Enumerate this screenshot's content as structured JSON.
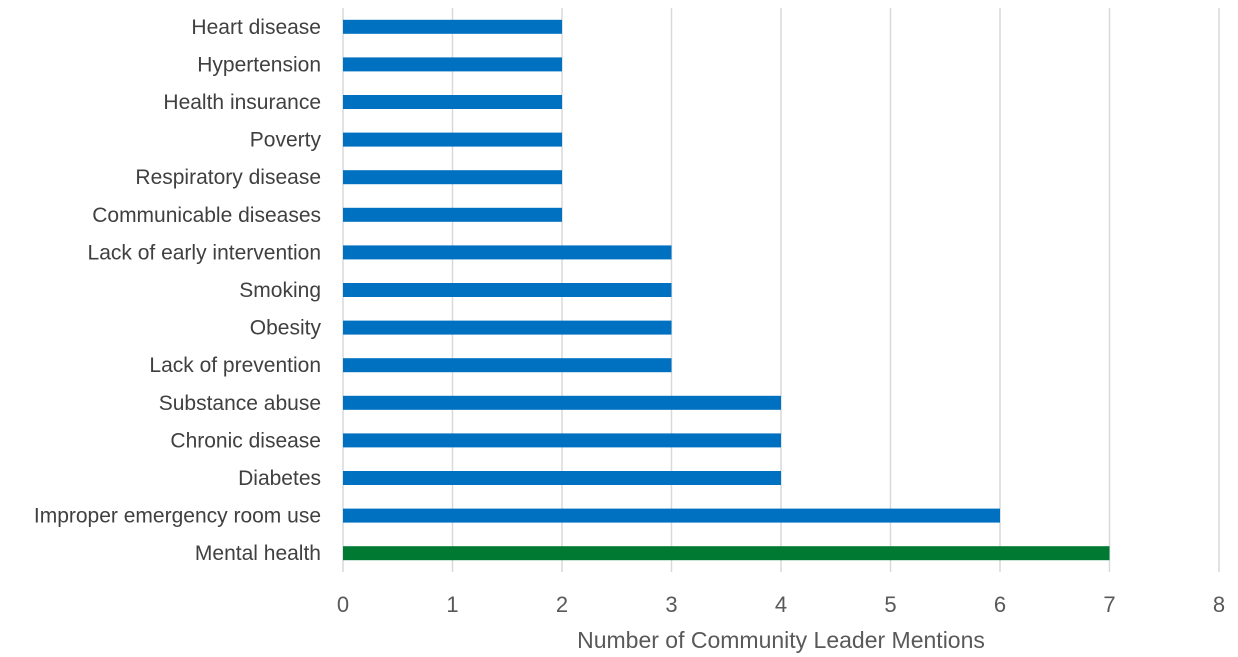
{
  "chart_data": {
    "type": "bar",
    "orientation": "horizontal",
    "categories": [
      "Heart disease",
      "Hypertension",
      "Health insurance",
      "Poverty",
      "Respiratory disease",
      "Communicable diseases",
      "Lack of early intervention",
      "Smoking",
      "Obesity",
      "Lack of prevention",
      "Substance abuse",
      "Chronic disease",
      "Diabetes",
      "Improper emergency room use",
      "Mental health"
    ],
    "values": [
      2,
      2,
      2,
      2,
      2,
      2,
      3,
      3,
      3,
      3,
      4,
      4,
      4,
      6,
      7
    ],
    "bar_colors": [
      "#0070c0",
      "#0070c0",
      "#0070c0",
      "#0070c0",
      "#0070c0",
      "#0070c0",
      "#0070c0",
      "#0070c0",
      "#0070c0",
      "#0070c0",
      "#0070c0",
      "#0070c0",
      "#0070c0",
      "#0070c0",
      "#007a33"
    ],
    "xlabel": "Number of Community Leader Mentions",
    "xlim": [
      0,
      8
    ],
    "xticks": [
      "0",
      "1",
      "2",
      "3",
      "4",
      "5",
      "6",
      "7",
      "8"
    ],
    "grid": "vertical",
    "legend": "none"
  }
}
